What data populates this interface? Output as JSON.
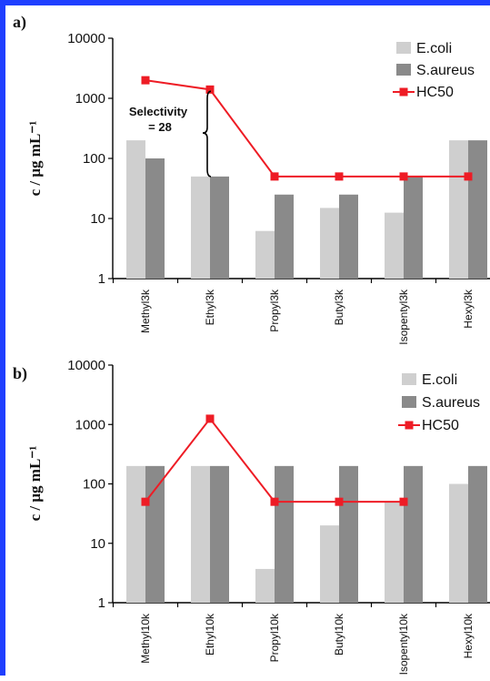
{
  "chart_data": [
    {
      "type": "bar",
      "panel_label": "a)",
      "ylabel": "c / μg mL⁻¹",
      "yscale": "log",
      "ylim": [
        1,
        10000
      ],
      "yticks": [
        "1",
        "10",
        "100",
        "1000",
        "10000"
      ],
      "categories": [
        "Methyl3k",
        "Ethyl3k",
        "Propyl3k",
        "Butyl3k",
        "Isopentyl3k",
        "Hexyl3k"
      ],
      "series": [
        {
          "name": "E.coli",
          "kind": "bar",
          "color": "#cfcfcf",
          "values": [
            200,
            50,
            6.2,
            15,
            12.5,
            200
          ]
        },
        {
          "name": "S.aureus",
          "kind": "bar",
          "color": "#8a8a8a",
          "values": [
            100,
            50,
            25,
            25,
            50,
            200
          ]
        },
        {
          "name": "HC50",
          "kind": "line",
          "color": "#ee1c25",
          "values": [
            2000,
            1400,
            50,
            50,
            50,
            50
          ]
        }
      ],
      "annotation": {
        "text_line1": "Selectivity",
        "text_line2": "= 28"
      },
      "legend": "top-right",
      "grid": false
    },
    {
      "type": "bar",
      "panel_label": "b)",
      "ylabel": "c / μg mL⁻¹",
      "yscale": "log",
      "ylim": [
        1,
        10000
      ],
      "yticks": [
        "1",
        "10",
        "100",
        "1000",
        "10000"
      ],
      "categories": [
        "Methyl10k",
        "Ethyl10k",
        "Propyl10k",
        "Butyl10k",
        "Isopentyl10k",
        "Hexyl10k"
      ],
      "series": [
        {
          "name": "E.coli",
          "kind": "bar",
          "color": "#cfcfcf",
          "values": [
            200,
            200,
            3.7,
            20,
            50,
            100
          ]
        },
        {
          "name": "S.aureus",
          "kind": "bar",
          "color": "#8a8a8a",
          "values": [
            200,
            200,
            200,
            200,
            200,
            200
          ]
        },
        {
          "name": "HC50",
          "kind": "line",
          "color": "#ee1c25",
          "values": [
            50,
            1250,
            50,
            50,
            50,
            null
          ]
        }
      ],
      "legend": "top-right",
      "grid": false
    }
  ]
}
